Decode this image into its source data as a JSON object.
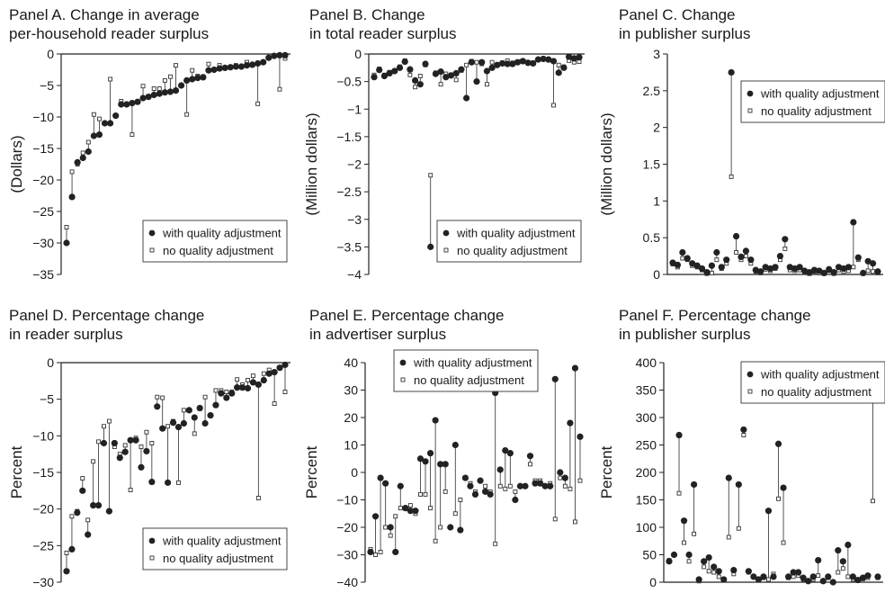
{
  "chart_data": [
    {
      "type": "scatter",
      "panel": "A",
      "title": "Panel A. Change in average\nper-household reader surplus",
      "ylabel": "(Dollars)",
      "ylim": [
        -35,
        0
      ],
      "yticks": [
        0,
        -5,
        -10,
        -15,
        -20,
        -25,
        -30,
        -35
      ],
      "ytick_labels": [
        "0",
        "−5",
        "−10",
        "−15",
        "−20",
        "−25",
        "−30",
        "−35"
      ],
      "grid": false,
      "legend_position": "bottom-right",
      "legend": [
        "with quality adjustment",
        "no quality adjustment"
      ],
      "series": [
        {
          "name": "with quality adjustment",
          "marker": "filled-circle",
          "values": [
            -30,
            -22.7,
            -17.2,
            -16.5,
            -15.5,
            -13,
            -12.8,
            -11,
            -11,
            -9.8,
            -8,
            -8,
            -7.8,
            -7.6,
            -7,
            -6.8,
            -6.5,
            -6.3,
            -6.1,
            -6,
            -5.8,
            -5,
            -4.2,
            -4,
            -3.8,
            -3.7,
            -2.6,
            -2.5,
            -2.3,
            -2.2,
            -2.1,
            -2,
            -2,
            -1.8,
            -1.7,
            -1.5,
            -1.3,
            -0.6,
            -0.3,
            -0.2,
            -0.2
          ]
        },
        {
          "name": "no quality adjustment",
          "marker": "open-square",
          "values": [
            -27.5,
            -18.7,
            -17.5,
            -15.7,
            -14,
            -9.6,
            -10.3,
            -11,
            -4,
            -9.8,
            -7.5,
            -8,
            -12.8,
            -7.6,
            -5.1,
            -6.8,
            -5.5,
            -5.5,
            -4.2,
            -3.6,
            -1.8,
            -5,
            -9.6,
            -2.6,
            -3.5,
            -3.6,
            -1.6,
            -2.5,
            -1.8,
            -2.2,
            -2.1,
            -1.8,
            -2,
            -1.3,
            -1.7,
            -7.9,
            -1.3,
            -0.6,
            -0.3,
            -5.6,
            -0.7
          ]
        }
      ]
    },
    {
      "type": "scatter",
      "panel": "B",
      "title": "Panel B. Change\nin total reader surplus",
      "ylabel": "(Million dollars)",
      "ylim": [
        -4,
        0
      ],
      "yticks": [
        0,
        -0.5,
        -1,
        -1.5,
        -2,
        -2.5,
        -3,
        -3.5,
        -4
      ],
      "ytick_labels": [
        "0",
        "−0.5",
        "−1",
        "−1.5",
        "−2",
        "−2.5",
        "−3",
        "−3.5",
        "−4"
      ],
      "grid": false,
      "legend_position": "bottom-right",
      "legend": [
        "with quality adjustment",
        "no quality adjustment"
      ],
      "series": [
        {
          "name": "with quality adjustment",
          "marker": "filled-circle",
          "values": [
            -0.42,
            -0.29,
            -0.4,
            -0.35,
            -0.31,
            -0.25,
            -0.14,
            -0.28,
            -0.48,
            -0.55,
            -0.18,
            -3.5,
            -0.36,
            -0.32,
            -0.42,
            -0.39,
            -0.35,
            -0.28,
            -0.8,
            -0.15,
            -0.5,
            -0.15,
            -0.31,
            -0.25,
            -0.2,
            -0.17,
            -0.18,
            -0.18,
            -0.15,
            -0.13,
            -0.16,
            -0.17,
            -0.1,
            -0.09,
            -0.1,
            -0.13,
            -0.34,
            -0.25,
            -0.05,
            -0.08,
            -0.06
          ]
        },
        {
          "name": "no quality adjustment",
          "marker": "open-square",
          "values": [
            -0.38,
            -0.27,
            -0.38,
            -0.33,
            -0.3,
            -0.23,
            -0.12,
            -0.38,
            -0.6,
            -0.4,
            -0.2,
            -2.2,
            -0.34,
            -0.55,
            -0.36,
            -0.38,
            -0.47,
            -0.3,
            -0.2,
            -0.13,
            -0.15,
            -0.18,
            -0.55,
            -0.15,
            -0.19,
            -0.16,
            -0.12,
            -0.16,
            -0.14,
            -0.12,
            -0.15,
            -0.16,
            -0.1,
            -0.08,
            -0.11,
            -0.93,
            -0.2,
            -0.23,
            -0.12,
            -0.15,
            -0.14
          ]
        }
      ]
    },
    {
      "type": "scatter",
      "panel": "C",
      "title": "Panel C. Change\nin publisher surplus",
      "ylabel": "(Million dollars)",
      "ylim": [
        0,
        3
      ],
      "yticks": [
        0,
        0.5,
        1,
        1.5,
        2,
        2.5,
        3
      ],
      "ytick_labels": [
        "0",
        "0.5",
        "1",
        "1.5",
        "2",
        "2.5",
        "3"
      ],
      "grid": false,
      "legend_position": "top-right",
      "legend": [
        "with quality adjustment",
        "no quality adjustment"
      ],
      "series": [
        {
          "name": "with quality adjustment",
          "marker": "filled-circle",
          "values": [
            0.16,
            0.13,
            0.3,
            0.22,
            0.15,
            0.12,
            0.08,
            0.03,
            0.12,
            0.3,
            0.1,
            0.2,
            2.75,
            0.52,
            0.24,
            0.32,
            0.2,
            0.06,
            0.04,
            0.1,
            0.08,
            0.1,
            0.25,
            0.48,
            0.1,
            0.08,
            0.1,
            0.05,
            0.03,
            0.06,
            0.05,
            0.02,
            0.07,
            0.03,
            0.1,
            0.08,
            0.1,
            0.71,
            0.23,
            0.02,
            0.18,
            0.15,
            0.04
          ]
        },
        {
          "name": "no quality adjustment",
          "marker": "open-square",
          "values": [
            0.14,
            0.1,
            0.22,
            0.2,
            0.12,
            0.1,
            0.06,
            0.01,
            0.02,
            0.2,
            0.08,
            0.15,
            1.33,
            0.3,
            0.2,
            0.25,
            0.15,
            0.04,
            0.02,
            0.07,
            0.05,
            0.08,
            0.2,
            0.35,
            0.06,
            0.05,
            0.06,
            0.03,
            0.01,
            0.04,
            0.02,
            0.01,
            0.05,
            0.01,
            0.06,
            0.04,
            0.05,
            0.1,
            0.2,
            0.01,
            0.05,
            0.04,
            0.02
          ]
        }
      ]
    },
    {
      "type": "scatter",
      "panel": "D",
      "title": "Panel D. Percentage change\nin reader surplus",
      "ylabel": "Percent",
      "ylim": [
        -30,
        0
      ],
      "yticks": [
        0,
        -5,
        -10,
        -15,
        -20,
        -25,
        -30
      ],
      "ytick_labels": [
        "0",
        "−5",
        "−10",
        "−15",
        "−20",
        "−25",
        "−30"
      ],
      "grid": false,
      "legend_position": "bottom-right",
      "legend": [
        "with quality adjustment",
        "no quality adjustment"
      ],
      "series": [
        {
          "name": "with quality adjustment",
          "marker": "filled-circle",
          "values": [
            -28.5,
            -25.5,
            -20.5,
            -17.5,
            -23.5,
            -19.5,
            -19.5,
            -11,
            -20.3,
            -11,
            -13,
            -12.2,
            -10.6,
            -10.6,
            -14.3,
            -12.1,
            -16.3,
            -6,
            -9,
            -16.4,
            -8.2,
            -8.8,
            -8.3,
            -6.5,
            -7.5,
            -6.2,
            -8.3,
            -7.2,
            -5.8,
            -4.2,
            -4.8,
            -4.2,
            -3.4,
            -3.4,
            -3.5,
            -2.7,
            -3,
            -2.4,
            -1.5,
            -1.3,
            -0.7,
            -0.3
          ]
        },
        {
          "name": "no quality adjustment",
          "marker": "open-square",
          "values": [
            -26,
            -21,
            -20.3,
            -15.8,
            -21.5,
            -13.5,
            -10.8,
            -8.7,
            -8,
            -11.5,
            -12.5,
            -11.3,
            -17.4,
            -10.3,
            -11.5,
            -9.5,
            -11,
            -4.7,
            -4.8,
            -8.7,
            -8,
            -16.4,
            -6.5,
            -6.5,
            -9.7,
            -6.3,
            -4.7,
            -7.2,
            -3.8,
            -3.8,
            -4,
            -4,
            -2.3,
            -3,
            -2.4,
            -1.8,
            -18.5,
            -1.5,
            -1,
            -5.6,
            -0.7,
            -4
          ]
        }
      ]
    },
    {
      "type": "scatter",
      "panel": "E",
      "title": "Panel E. Percentage change\nin advertiser surplus",
      "ylabel": "Percent",
      "ylim": [
        -40,
        40
      ],
      "yticks": [
        40,
        30,
        20,
        10,
        0,
        -10,
        -20,
        -30,
        -40
      ],
      "ytick_labels": [
        "40",
        "30",
        "20",
        "10",
        "0",
        "−10",
        "−20",
        "−30",
        "−40"
      ],
      "grid": false,
      "legend_position": "top-right",
      "legend": [
        "with quality adjustment",
        "no quality adjustment"
      ],
      "series": [
        {
          "name": "with quality adjustment",
          "marker": "filled-circle",
          "values": [
            -29,
            -16,
            -2,
            -4,
            -20,
            -29,
            -5,
            -13,
            -14,
            -14,
            5,
            4,
            7,
            19,
            3,
            3,
            -20,
            10,
            -21,
            -2,
            -5,
            -8,
            -3,
            -7,
            -8,
            29,
            1,
            8,
            7,
            -10,
            -5,
            -5,
            6,
            -4,
            -4,
            -5,
            -5,
            34,
            0,
            -2,
            18,
            38,
            13
          ]
        },
        {
          "name": "no quality adjustment",
          "marker": "open-square",
          "values": [
            -28,
            -30,
            -29,
            -20,
            -23,
            -16,
            -13,
            -13,
            -12,
            -15,
            -8,
            -8,
            -13,
            -25,
            -20,
            -7,
            -20,
            -15,
            -10,
            -2,
            -4,
            -7,
            -3,
            -5,
            -7,
            -26,
            -5,
            -6,
            -5,
            -7,
            -5,
            -5,
            3,
            -3,
            -3,
            -5,
            -4,
            -17,
            -2,
            -5,
            -6,
            -18,
            -3
          ]
        }
      ]
    },
    {
      "type": "scatter",
      "panel": "F",
      "title": "Panel F. Percentage change\nin publisher surplus",
      "ylabel": "Percent",
      "ylim": [
        0,
        400
      ],
      "yticks": [
        0,
        50,
        100,
        150,
        200,
        250,
        300,
        350,
        400
      ],
      "ytick_labels": [
        "0",
        "50",
        "100",
        "150",
        "200",
        "250",
        "300",
        "350",
        "400"
      ],
      "grid": false,
      "legend_position": "top-right",
      "legend": [
        "with quality adjustment",
        "no quality adjustment"
      ],
      "series": [
        {
          "name": "with quality adjustment",
          "marker": "filled-circle",
          "values": [
            38,
            50,
            268,
            112,
            50,
            178,
            5,
            38,
            45,
            28,
            20,
            5,
            190,
            22,
            178,
            278,
            20,
            10,
            5,
            10,
            130,
            10,
            252,
            172,
            10,
            18,
            18,
            8,
            2,
            10,
            40,
            2,
            10,
            0,
            58,
            38,
            68,
            10,
            4,
            8,
            12,
            372,
            10
          ]
        },
        {
          "name": "no quality adjustment",
          "marker": "open-square",
          "values": [
            40,
            50,
            162,
            72,
            38,
            88,
            2,
            28,
            20,
            18,
            10,
            5,
            82,
            15,
            98,
            268,
            18,
            10,
            5,
            8,
            5,
            15,
            152,
            72,
            8,
            10,
            12,
            5,
            2,
            5,
            12,
            2,
            8,
            0,
            18,
            25,
            10,
            5,
            3,
            6,
            8,
            148,
            8
          ]
        }
      ]
    }
  ]
}
